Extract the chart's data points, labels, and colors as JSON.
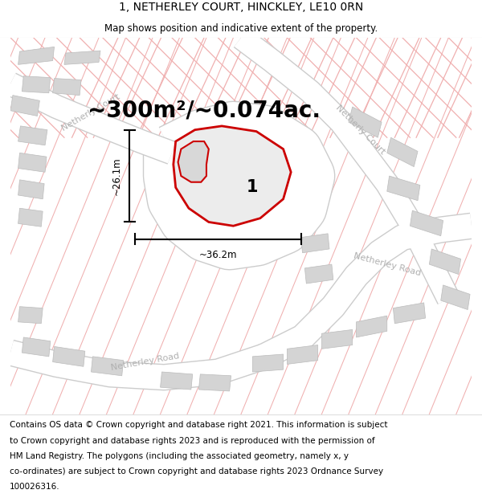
{
  "title": "1, NETHERLEY COURT, HINCKLEY, LE10 0RN",
  "subtitle": "Map shows position and indicative extent of the property.",
  "area_text": "~300m²/~0.074ac.",
  "dim_horizontal": "~36.2m",
  "dim_vertical": "~26.1m",
  "plot_number": "1",
  "footer_lines": [
    "Contains OS data © Crown copyright and database right 2021. This information is subject",
    "to Crown copyright and database rights 2023 and is reproduced with the permission of",
    "HM Land Registry. The polygons (including the associated geometry, namely x, y",
    "co-ordinates) are subject to Crown copyright and database rights 2023 Ordnance Survey",
    "100026316."
  ],
  "map_bg": "#eeeeee",
  "road_fill": "#ffffff",
  "road_edge": "#cccccc",
  "building_fill": "#d4d4d4",
  "building_edge": "#bbbbbb",
  "property_stroke": "#cc0000",
  "road_label_color": "#b0b0b0",
  "road_line_color": "#f0b0b0",
  "title_fontsize": 10,
  "subtitle_fontsize": 8.5,
  "area_fontsize": 20,
  "footer_fontsize": 7.5,
  "map_xlim": [
    0,
    600
  ],
  "map_ylim": [
    0,
    490
  ]
}
